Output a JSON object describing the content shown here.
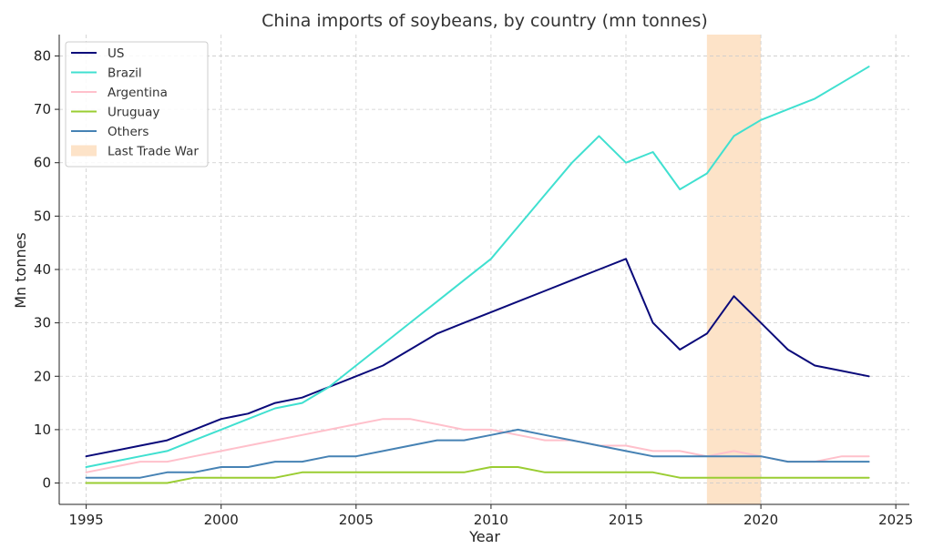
{
  "chart_data": {
    "type": "line",
    "title": "China imports of soybeans, by country (mn tonnes)",
    "xlabel": "Year",
    "ylabel": "Mn tonnes",
    "xlim": [
      1994,
      2025.5
    ],
    "ylim": [
      -4,
      84
    ],
    "x_ticks": [
      1995,
      2000,
      2005,
      2010,
      2015,
      2020,
      2025
    ],
    "y_ticks": [
      0,
      10,
      20,
      30,
      40,
      50,
      60,
      70,
      80
    ],
    "grid": true,
    "legend_position": "top-left",
    "x": [
      1995,
      1996,
      1997,
      1998,
      1999,
      2000,
      2001,
      2002,
      2003,
      2004,
      2005,
      2006,
      2007,
      2008,
      2009,
      2010,
      2011,
      2012,
      2013,
      2014,
      2015,
      2016,
      2017,
      2018,
      2019,
      2020,
      2021,
      2022,
      2023,
      2024
    ],
    "series": [
      {
        "name": "US",
        "color": "#0a0a7a",
        "values": [
          5,
          6,
          7,
          8,
          10,
          12,
          13,
          15,
          16,
          18,
          20,
          22,
          25,
          28,
          30,
          32,
          34,
          36,
          38,
          40,
          42,
          30,
          25,
          28,
          35,
          30,
          25,
          22,
          21,
          20
        ]
      },
      {
        "name": "Brazil",
        "color": "#40e0d0",
        "values": [
          3,
          4,
          5,
          6,
          8,
          10,
          12,
          14,
          15,
          18,
          22,
          26,
          30,
          34,
          38,
          42,
          48,
          54,
          60,
          65,
          60,
          62,
          55,
          58,
          65,
          68,
          70,
          72,
          75,
          78
        ]
      },
      {
        "name": "Argentina",
        "color": "#ffc0cb",
        "values": [
          2,
          3,
          4,
          4,
          5,
          6,
          7,
          8,
          9,
          10,
          11,
          12,
          12,
          11,
          10,
          10,
          9,
          8,
          8,
          7,
          7,
          6,
          6,
          5,
          6,
          5,
          4,
          4,
          5,
          5
        ]
      },
      {
        "name": "Uruguay",
        "color": "#9acd32",
        "values": [
          0,
          0,
          0,
          0,
          1,
          1,
          1,
          1,
          2,
          2,
          2,
          2,
          2,
          2,
          2,
          3,
          3,
          2,
          2,
          2,
          2,
          2,
          1,
          1,
          1,
          1,
          1,
          1,
          1,
          1
        ]
      },
      {
        "name": "Others",
        "color": "#4682b4",
        "values": [
          1,
          1,
          1,
          2,
          2,
          3,
          3,
          4,
          4,
          5,
          5,
          6,
          7,
          8,
          8,
          9,
          10,
          9,
          8,
          7,
          6,
          5,
          5,
          5,
          5,
          5,
          4,
          4,
          4,
          4
        ]
      }
    ],
    "shaded_region": {
      "name": "Last Trade War",
      "x_start": 2018,
      "x_end": 2020,
      "color": "#fde3c8"
    }
  }
}
